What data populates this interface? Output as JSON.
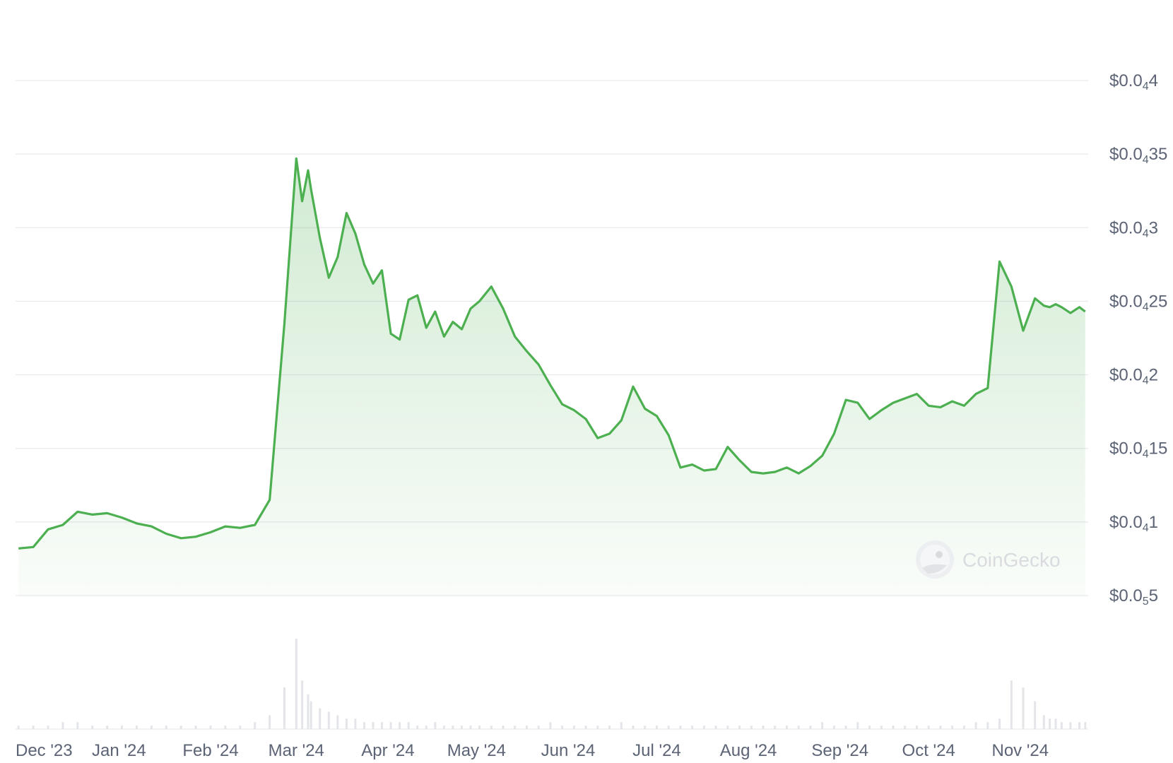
{
  "chart_data": {
    "type": "area",
    "title": "",
    "xlabel": "",
    "ylabel": "",
    "ylim": [
      5e-06,
      4e-05
    ],
    "x_ticks": [
      "Dec '23",
      "Jan '24",
      "Feb '24",
      "Mar '24",
      "Apr '24",
      "May '24",
      "Jun '24",
      "Jul '24",
      "Aug '24",
      "Sep '24",
      "Oct '24",
      "Nov '24"
    ],
    "y_ticks": [
      {
        "prefix": "$0.0",
        "sub": "5",
        "suffix": "5",
        "value": 5e-06
      },
      {
        "prefix": "$0.0",
        "sub": "4",
        "suffix": "1",
        "value": 1e-05
      },
      {
        "prefix": "$0.0",
        "sub": "4",
        "suffix": "15",
        "value": 1.5e-05
      },
      {
        "prefix": "$0.0",
        "sub": "4",
        "suffix": "2",
        "value": 2e-05
      },
      {
        "prefix": "$0.0",
        "sub": "4",
        "suffix": "25",
        "value": 2.5e-05
      },
      {
        "prefix": "$0.0",
        "sub": "4",
        "suffix": "3",
        "value": 3e-05
      },
      {
        "prefix": "$0.0",
        "sub": "4",
        "suffix": "35",
        "value": 3.5e-05
      },
      {
        "prefix": "$0.0",
        "sub": "4",
        "suffix": "4",
        "value": 4e-05
      }
    ],
    "series": [
      {
        "color": "#4caf50",
        "x": [
          "2023-11-28",
          "2023-12-03",
          "2023-12-08",
          "2023-12-13",
          "2023-12-18",
          "2023-12-23",
          "2023-12-28",
          "2024-01-02",
          "2024-01-07",
          "2024-01-12",
          "2024-01-17",
          "2024-01-22",
          "2024-01-27",
          "2024-02-01",
          "2024-02-06",
          "2024-02-11",
          "2024-02-16",
          "2024-02-21",
          "2024-02-26",
          "2024-03-01",
          "2024-03-03",
          "2024-03-05",
          "2024-03-06",
          "2024-03-09",
          "2024-03-12",
          "2024-03-15",
          "2024-03-18",
          "2024-03-21",
          "2024-03-24",
          "2024-03-27",
          "2024-03-30",
          "2024-04-02",
          "2024-04-05",
          "2024-04-08",
          "2024-04-11",
          "2024-04-14",
          "2024-04-17",
          "2024-04-20",
          "2024-04-23",
          "2024-04-26",
          "2024-04-29",
          "2024-05-02",
          "2024-05-06",
          "2024-05-10",
          "2024-05-14",
          "2024-05-18",
          "2024-05-22",
          "2024-05-26",
          "2024-05-30",
          "2024-06-03",
          "2024-06-07",
          "2024-06-11",
          "2024-06-15",
          "2024-06-19",
          "2024-06-23",
          "2024-06-27",
          "2024-07-01",
          "2024-07-05",
          "2024-07-09",
          "2024-07-13",
          "2024-07-17",
          "2024-07-21",
          "2024-07-25",
          "2024-07-29",
          "2024-08-02",
          "2024-08-06",
          "2024-08-10",
          "2024-08-14",
          "2024-08-18",
          "2024-08-22",
          "2024-08-26",
          "2024-08-30",
          "2024-09-03",
          "2024-09-07",
          "2024-09-11",
          "2024-09-15",
          "2024-09-19",
          "2024-09-23",
          "2024-09-27",
          "2024-10-01",
          "2024-10-05",
          "2024-10-09",
          "2024-10-13",
          "2024-10-17",
          "2024-10-21",
          "2024-10-25",
          "2024-10-29",
          "2024-11-02",
          "2024-11-06",
          "2024-11-09",
          "2024-11-11",
          "2024-11-13",
          "2024-11-15",
          "2024-11-18",
          "2024-11-21",
          "2024-11-23"
        ],
        "values": [
          8.2e-06,
          8.3e-06,
          9.5e-06,
          9.8e-06,
          1.07e-05,
          1.05e-05,
          1.06e-05,
          1.03e-05,
          9.9e-06,
          9.7e-06,
          9.2e-06,
          8.9e-06,
          9e-06,
          9.3e-06,
          9.7e-06,
          9.6e-06,
          9.8e-06,
          1.15e-05,
          2.35e-05,
          3.47e-05,
          3.18e-05,
          3.39e-05,
          3.26e-05,
          2.93e-05,
          2.66e-05,
          2.8e-05,
          3.1e-05,
          2.96e-05,
          2.75e-05,
          2.62e-05,
          2.71e-05,
          2.28e-05,
          2.24e-05,
          2.51e-05,
          2.54e-05,
          2.32e-05,
          2.43e-05,
          2.26e-05,
          2.36e-05,
          2.31e-05,
          2.45e-05,
          2.5e-05,
          2.6e-05,
          2.45e-05,
          2.26e-05,
          2.16e-05,
          2.07e-05,
          1.93e-05,
          1.8e-05,
          1.76e-05,
          1.7e-05,
          1.57e-05,
          1.6e-05,
          1.69e-05,
          1.92e-05,
          1.77e-05,
          1.72e-05,
          1.59e-05,
          1.37e-05,
          1.39e-05,
          1.35e-05,
          1.36e-05,
          1.51e-05,
          1.42e-05,
          1.34e-05,
          1.33e-05,
          1.34e-05,
          1.37e-05,
          1.33e-05,
          1.38e-05,
          1.45e-05,
          1.6e-05,
          1.83e-05,
          1.81e-05,
          1.7e-05,
          1.76e-05,
          1.81e-05,
          1.84e-05,
          1.87e-05,
          1.79e-05,
          1.78e-05,
          1.82e-05,
          1.79e-05,
          1.87e-05,
          1.91e-05,
          2.77e-05,
          2.6e-05,
          2.3e-05,
          2.52e-05,
          2.47e-05,
          2.46e-05,
          2.48e-05,
          2.46e-05,
          2.42e-05,
          2.46e-05,
          2.43e-05
        ],
        "volume": [
          1,
          1,
          1,
          2,
          2,
          1,
          1,
          1,
          1,
          1,
          1,
          1,
          1,
          1,
          1,
          1,
          2,
          4,
          12,
          26,
          14,
          10,
          8,
          6,
          5,
          4,
          3,
          3,
          2,
          2,
          2,
          2,
          2,
          2,
          1,
          1,
          2,
          1,
          1,
          1,
          1,
          1,
          1,
          1,
          1,
          1,
          1,
          2,
          1,
          1,
          1,
          1,
          1,
          2,
          1,
          1,
          1,
          1,
          1,
          1,
          1,
          1,
          1,
          1,
          1,
          1,
          1,
          1,
          1,
          1,
          2,
          1,
          1,
          2,
          1,
          1,
          1,
          1,
          1,
          1,
          1,
          1,
          1,
          2,
          2,
          3,
          14,
          12,
          8,
          4,
          3,
          3,
          2,
          2,
          2,
          2
        ]
      }
    ]
  },
  "watermark": {
    "text": "CoinGecko"
  }
}
